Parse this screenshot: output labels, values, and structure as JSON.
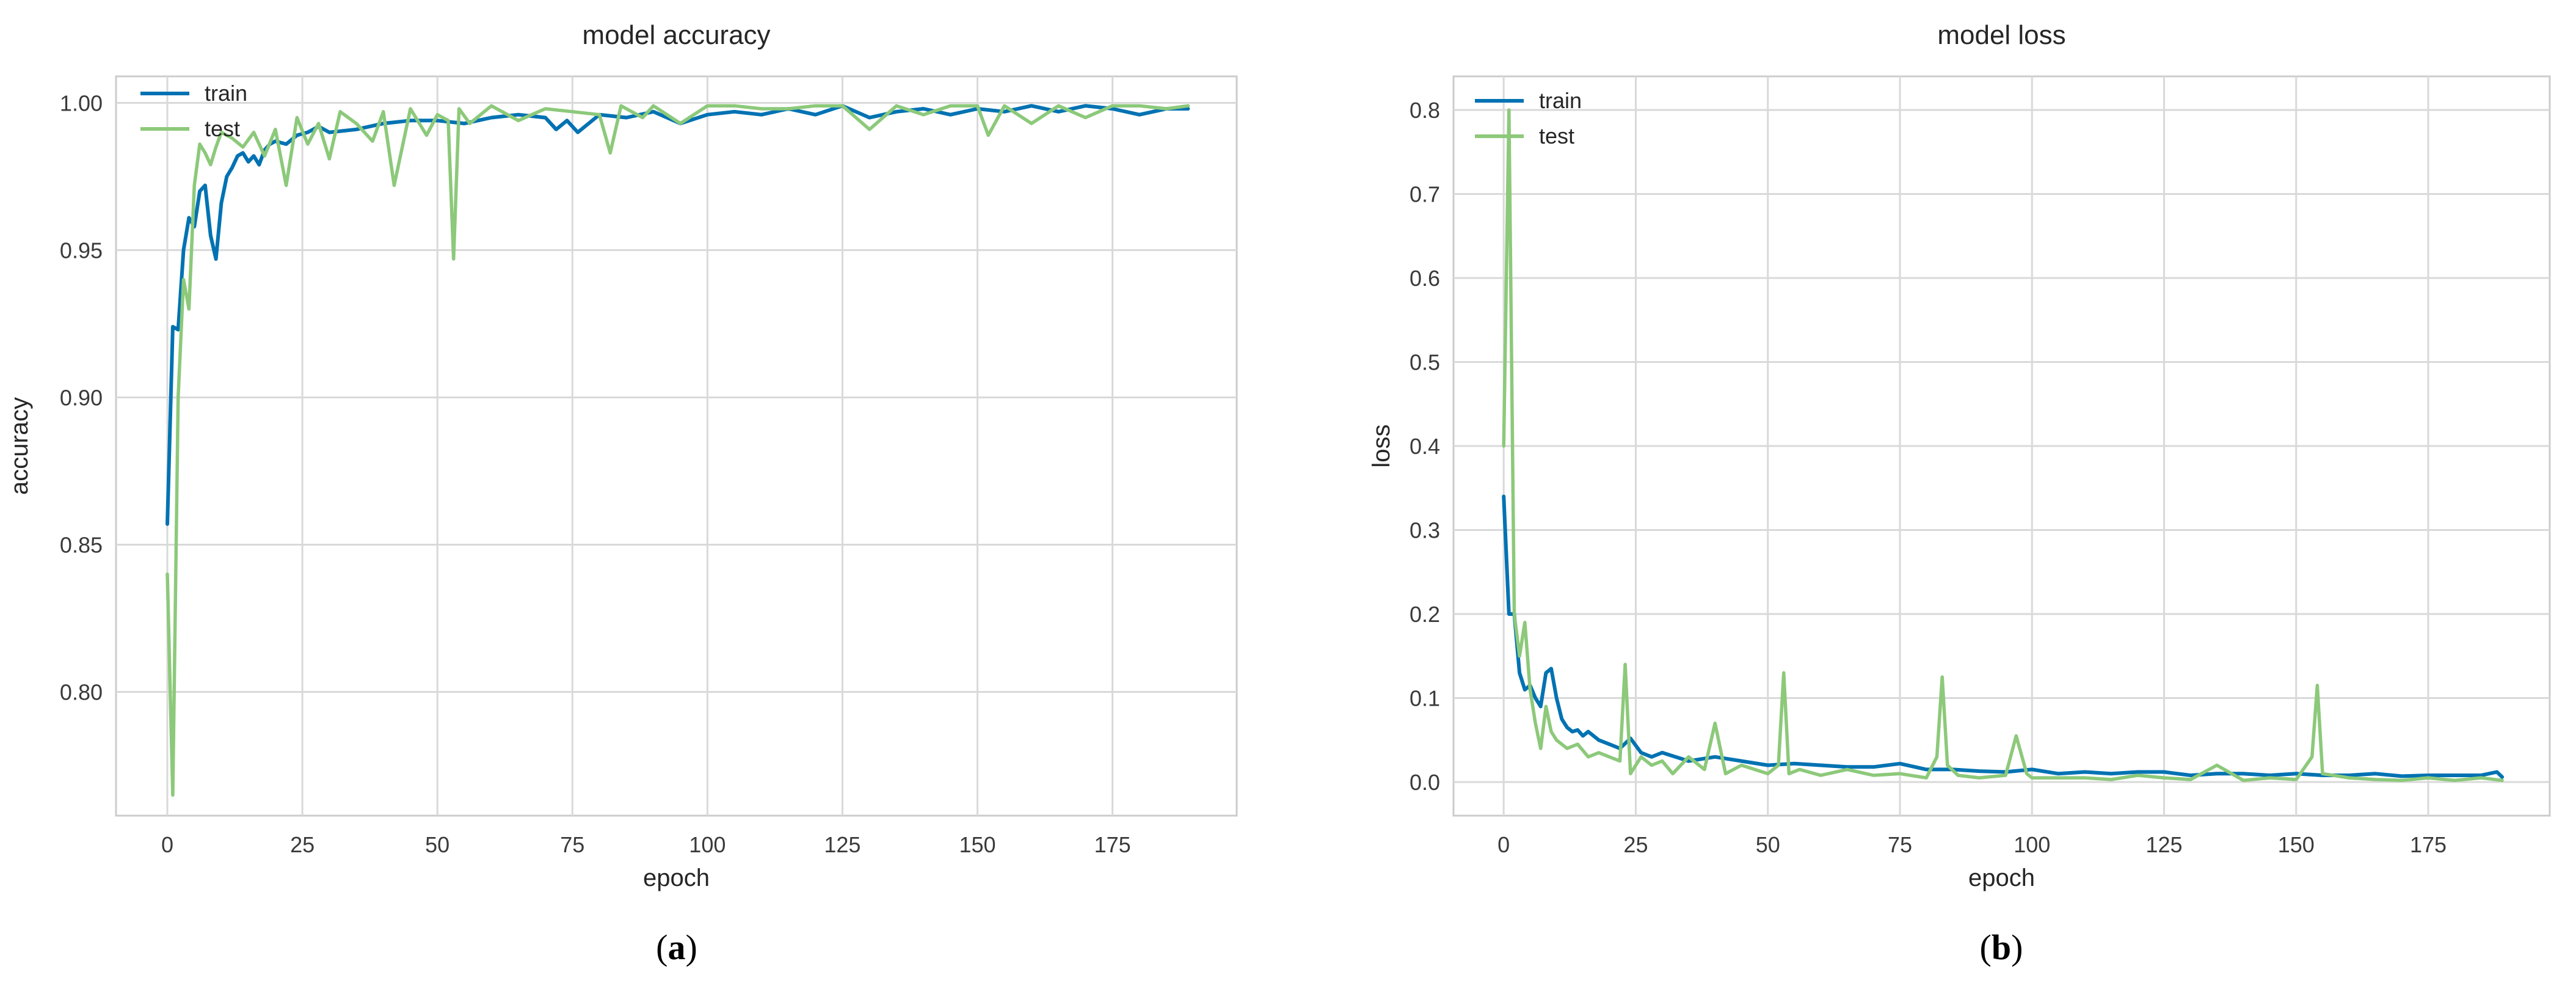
{
  "colors": {
    "train": "#0072B2",
    "test": "#8CC97A",
    "grid": "#d9d9d9",
    "frame": "#cccccc"
  },
  "chart_data": [
    {
      "type": "line",
      "title": "model accuracy",
      "xlabel": "epoch",
      "ylabel": "accuracy",
      "xlim": [
        -9.5,
        198
      ],
      "ylim": [
        0.758,
        1.009
      ],
      "xticks": [
        0,
        25,
        50,
        75,
        100,
        125,
        150,
        175
      ],
      "xtick_labels": [
        "0",
        "25",
        "50",
        "75",
        "100",
        "125",
        "150",
        "175"
      ],
      "yticks": [
        0.8,
        0.85,
        0.9,
        0.95,
        1.0
      ],
      "ytick_labels": [
        "0.80",
        "0.85",
        "0.90",
        "0.95",
        "1.00"
      ],
      "grid": true,
      "legend": "upper left",
      "caption": {
        "open": "(",
        "letter": "a",
        "close": ")"
      },
      "series": [
        {
          "name": "train",
          "x": [
            0,
            1,
            2,
            3,
            4,
            5,
            6,
            7,
            8,
            9,
            10,
            11,
            12,
            13,
            14,
            15,
            16,
            17,
            18,
            19,
            20,
            22,
            24,
            26,
            28,
            30,
            35,
            40,
            45,
            50,
            55,
            60,
            65,
            70,
            72,
            74,
            76,
            80,
            85,
            90,
            95,
            100,
            105,
            110,
            115,
            120,
            125,
            130,
            135,
            140,
            145,
            150,
            155,
            160,
            165,
            170,
            175,
            180,
            185,
            189
          ],
          "y": [
            0.857,
            0.924,
            0.923,
            0.95,
            0.961,
            0.958,
            0.97,
            0.972,
            0.955,
            0.947,
            0.966,
            0.975,
            0.978,
            0.982,
            0.983,
            0.98,
            0.982,
            0.979,
            0.984,
            0.986,
            0.987,
            0.986,
            0.989,
            0.99,
            0.992,
            0.99,
            0.991,
            0.993,
            0.994,
            0.994,
            0.993,
            0.995,
            0.996,
            0.995,
            0.991,
            0.994,
            0.99,
            0.996,
            0.995,
            0.997,
            0.993,
            0.996,
            0.997,
            0.996,
            0.998,
            0.996,
            0.999,
            0.995,
            0.997,
            0.998,
            0.996,
            0.998,
            0.997,
            0.999,
            0.997,
            0.999,
            0.998,
            0.996,
            0.998,
            0.998
          ]
        },
        {
          "name": "test",
          "x": [
            0,
            1,
            2,
            3,
            4,
            5,
            6,
            7,
            8,
            9,
            10,
            12,
            14,
            16,
            18,
            20,
            22,
            24,
            26,
            28,
            30,
            32,
            35,
            38,
            40,
            42,
            45,
            48,
            50,
            52,
            53,
            54,
            56,
            60,
            65,
            70,
            75,
            80,
            82,
            84,
            88,
            90,
            95,
            100,
            105,
            110,
            115,
            120,
            125,
            130,
            135,
            140,
            145,
            150,
            152,
            155,
            160,
            165,
            170,
            175,
            180,
            185,
            189
          ],
          "y": [
            0.84,
            0.765,
            0.9,
            0.94,
            0.93,
            0.972,
            0.986,
            0.983,
            0.979,
            0.985,
            0.99,
            0.988,
            0.985,
            0.99,
            0.982,
            0.991,
            0.972,
            0.995,
            0.986,
            0.993,
            0.981,
            0.997,
            0.993,
            0.987,
            0.997,
            0.972,
            0.998,
            0.989,
            0.996,
            0.994,
            0.947,
            0.998,
            0.993,
            0.999,
            0.994,
            0.998,
            0.997,
            0.996,
            0.983,
            0.999,
            0.995,
            0.999,
            0.993,
            0.999,
            0.999,
            0.998,
            0.998,
            0.999,
            0.999,
            0.991,
            0.999,
            0.996,
            0.999,
            0.999,
            0.989,
            0.999,
            0.993,
            0.999,
            0.995,
            0.999,
            0.999,
            0.998,
            0.999
          ]
        }
      ]
    },
    {
      "type": "line",
      "title": "model loss",
      "xlabel": "epoch",
      "ylabel": "loss",
      "xlim": [
        -9.5,
        198
      ],
      "ylim": [
        -0.04,
        0.84
      ],
      "xticks": [
        0,
        25,
        50,
        75,
        100,
        125,
        150,
        175
      ],
      "xtick_labels": [
        "0",
        "25",
        "50",
        "75",
        "100",
        "125",
        "150",
        "175"
      ],
      "yticks": [
        0.0,
        0.1,
        0.2,
        0.3,
        0.4,
        0.5,
        0.6,
        0.7,
        0.8
      ],
      "ytick_labels": [
        "0.0",
        "0.1",
        "0.2",
        "0.3",
        "0.4",
        "0.5",
        "0.6",
        "0.7",
        "0.8"
      ],
      "grid": true,
      "legend": "upper left",
      "caption": {
        "open": "(",
        "letter": "b",
        "close": ")"
      },
      "series": [
        {
          "name": "train",
          "x": [
            0,
            1,
            2,
            3,
            4,
            5,
            6,
            7,
            8,
            9,
            10,
            11,
            12,
            13,
            14,
            15,
            16,
            18,
            20,
            22,
            24,
            26,
            28,
            30,
            35,
            40,
            45,
            50,
            55,
            60,
            65,
            70,
            75,
            80,
            85,
            90,
            95,
            100,
            105,
            110,
            115,
            120,
            125,
            130,
            135,
            140,
            145,
            150,
            155,
            160,
            165,
            170,
            175,
            180,
            185,
            188,
            189
          ],
          "y": [
            0.34,
            0.2,
            0.2,
            0.13,
            0.11,
            0.115,
            0.1,
            0.09,
            0.13,
            0.135,
            0.1,
            0.075,
            0.065,
            0.06,
            0.062,
            0.055,
            0.06,
            0.05,
            0.045,
            0.04,
            0.052,
            0.035,
            0.03,
            0.035,
            0.025,
            0.03,
            0.025,
            0.02,
            0.022,
            0.02,
            0.018,
            0.018,
            0.022,
            0.015,
            0.015,
            0.013,
            0.012,
            0.015,
            0.01,
            0.012,
            0.01,
            0.012,
            0.012,
            0.008,
            0.01,
            0.01,
            0.008,
            0.01,
            0.008,
            0.008,
            0.01,
            0.007,
            0.008,
            0.008,
            0.008,
            0.012,
            0.006
          ]
        },
        {
          "name": "test",
          "x": [
            0,
            1,
            2,
            3,
            4,
            5,
            6,
            7,
            8,
            9,
            10,
            12,
            14,
            16,
            18,
            20,
            22,
            23,
            24,
            26,
            28,
            30,
            32,
            35,
            38,
            40,
            42,
            45,
            50,
            52,
            53,
            54,
            56,
            60,
            65,
            70,
            75,
            80,
            82,
            83,
            84,
            86,
            90,
            95,
            97,
            99,
            100,
            105,
            110,
            115,
            120,
            125,
            130,
            135,
            140,
            145,
            150,
            153,
            154,
            155,
            160,
            165,
            170,
            175,
            180,
            185,
            189
          ],
          "y": [
            0.4,
            0.8,
            0.2,
            0.15,
            0.19,
            0.11,
            0.07,
            0.04,
            0.09,
            0.06,
            0.05,
            0.04,
            0.045,
            0.03,
            0.035,
            0.03,
            0.025,
            0.14,
            0.01,
            0.03,
            0.02,
            0.025,
            0.01,
            0.03,
            0.015,
            0.07,
            0.01,
            0.02,
            0.01,
            0.02,
            0.13,
            0.01,
            0.015,
            0.008,
            0.015,
            0.008,
            0.01,
            0.005,
            0.03,
            0.125,
            0.02,
            0.008,
            0.005,
            0.008,
            0.055,
            0.01,
            0.005,
            0.005,
            0.005,
            0.003,
            0.008,
            0.005,
            0.003,
            0.02,
            0.002,
            0.005,
            0.003,
            0.03,
            0.115,
            0.01,
            0.005,
            0.003,
            0.002,
            0.005,
            0.002,
            0.005,
            0.002
          ]
        }
      ]
    }
  ]
}
